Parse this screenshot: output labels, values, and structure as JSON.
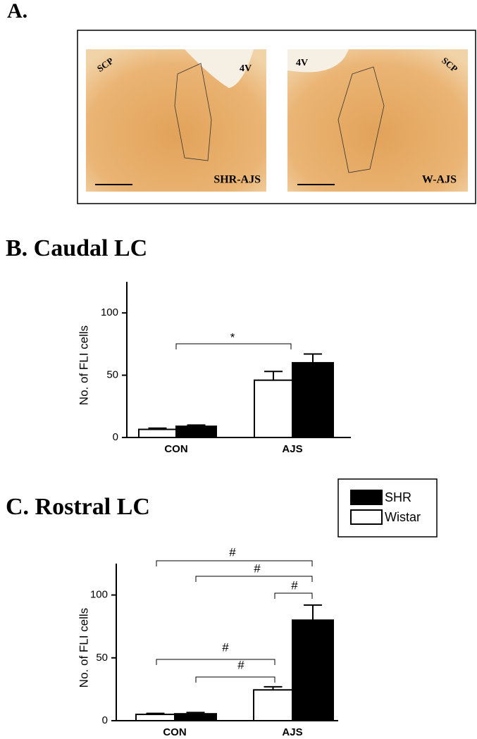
{
  "panel_a": {
    "label": "A.",
    "images": [
      {
        "marks": [
          "SCP",
          "4V"
        ],
        "caption": "SHR-AJS"
      },
      {
        "marks": [
          "4V",
          "SCP"
        ],
        "caption": "W-AJS"
      }
    ]
  },
  "chart_data": [
    {
      "type": "bar",
      "title": "B. Caudal LC",
      "y_label": "No. of FLI cells",
      "categories": [
        "CON",
        "AJS"
      ],
      "series": [
        {
          "name": "Wistar",
          "color": "#ffffff",
          "values": [
            6.5,
            46
          ],
          "errors": [
            1,
            7
          ]
        },
        {
          "name": "SHR",
          "color": "#000000",
          "values": [
            9,
            60
          ],
          "errors": [
            1,
            7
          ]
        }
      ],
      "ylim": [
        0,
        125
      ],
      "yticks": [
        0,
        50,
        100
      ],
      "legend": false,
      "brackets": [
        "*"
      ]
    },
    {
      "type": "bar",
      "title": "C. Rostral LC",
      "y_label": "No. of FLI cells",
      "categories": [
        "CON",
        "AJS"
      ],
      "series": [
        {
          "name": "Wistar",
          "color": "#ffffff",
          "values": [
            5,
            24.5
          ],
          "errors": [
            0.8,
            2.5
          ]
        },
        {
          "name": "SHR",
          "color": "#000000",
          "values": [
            5.5,
            80
          ],
          "errors": [
            1,
            12
          ]
        }
      ],
      "ylim": [
        0,
        125
      ],
      "yticks": [
        0,
        50,
        100
      ],
      "legend": true,
      "brackets": [
        "#",
        "#",
        "#",
        "#",
        "#"
      ]
    }
  ]
}
